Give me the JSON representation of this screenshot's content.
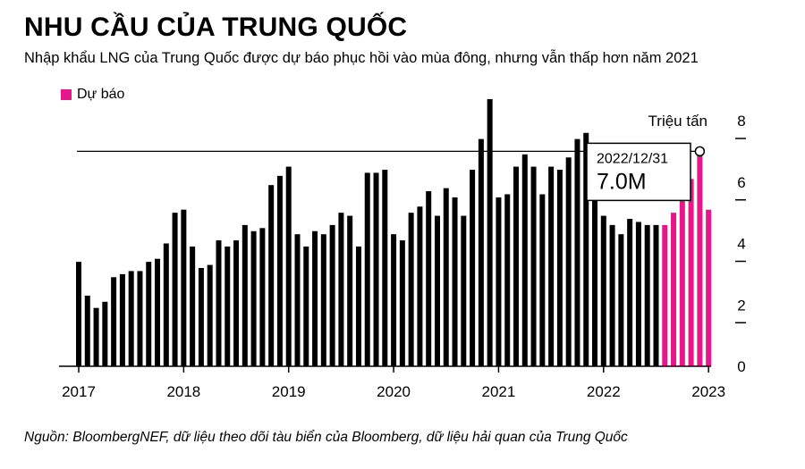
{
  "title": "NHU CẦU CỦA TRUNG QUỐC",
  "subtitle": "Nhập khẩu LNG của Trung Quốc được dự báo phục hồi vào mùa đông, nhưng vẫn thấp hơn năm 2021",
  "source": "Nguồn: BloombergNEF, dữ liệu theo dõi tàu biển của Bloomberg, dữ liệu hải quan của Trung Quốc",
  "legend": {
    "label": "Dự báo",
    "color": "#e8168b"
  },
  "colors": {
    "actual": "#000000",
    "forecast": "#e8168b"
  },
  "tooltip": {
    "date": "2022/12/31",
    "value": "7.0M",
    "ref_value": 7.0
  },
  "chart_data": {
    "type": "bar",
    "unit_label": "Triệu tấn",
    "ylim": [
      0,
      8
    ],
    "yticks": [
      0,
      2,
      4,
      6,
      8
    ],
    "ytick_labels": [
      "0",
      "2",
      "4",
      "6",
      "8"
    ],
    "xtick_labels": [
      "2017",
      "2018",
      "2019",
      "2020",
      "2021",
      "2022",
      "2023"
    ],
    "start": "2017-01",
    "series": [
      {
        "kind": "actual",
        "values": [
          3.4,
          2.3,
          1.9,
          2.1,
          2.9,
          3.0,
          3.1,
          3.1,
          3.4,
          3.5,
          4.0,
          5.0,
          5.1,
          3.9,
          3.2,
          3.3,
          4.1,
          3.9,
          4.1,
          4.6,
          4.4,
          4.5,
          5.9,
          6.2,
          6.5,
          4.3,
          3.9,
          4.4,
          4.3,
          4.6,
          5.0,
          4.9,
          3.9,
          6.3,
          6.3,
          6.4,
          4.3,
          4.1,
          5.0,
          5.2,
          5.7,
          4.9,
          5.8,
          5.5,
          4.9,
          6.4,
          7.4,
          8.7,
          5.5,
          5.6,
          6.5,
          6.9,
          6.5,
          5.6,
          6.5,
          6.4,
          6.8,
          7.4,
          7.6,
          5.6,
          4.9,
          4.6,
          4.3,
          4.8,
          4.7,
          4.6,
          4.6
        ]
      },
      {
        "kind": "forecast",
        "values": [
          4.6,
          5.0,
          5.5,
          6.1,
          7.0,
          5.1
        ]
      }
    ]
  }
}
